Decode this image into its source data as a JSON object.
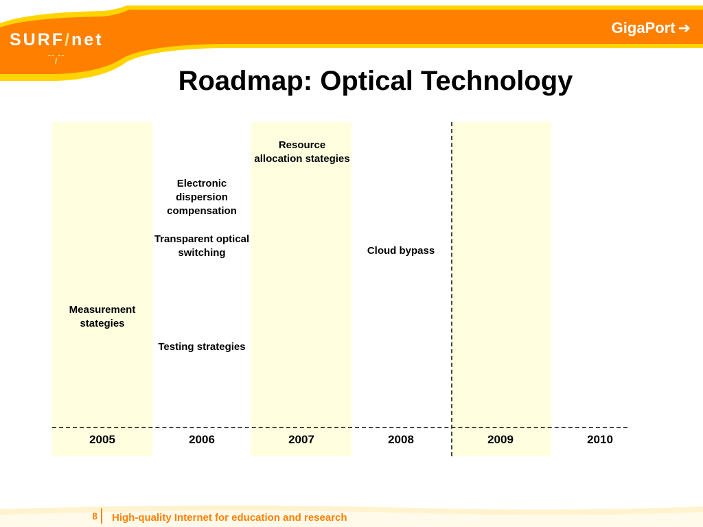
{
  "header": {
    "logo_letters": "SURF",
    "logo_slash": "/",
    "logo_suffix": "net",
    "logo_dashes": "-- --",
    "logo_mark": "/",
    "brand_link": "GigaPort",
    "brand_arrow": "➔"
  },
  "title": "Roadmap: Optical Technology",
  "timeline": {
    "years": [
      "2005",
      "2006",
      "2007",
      "2008",
      "2009",
      "2010"
    ],
    "items": [
      {
        "line1": "Resource",
        "line2": "allocation stategies"
      },
      {
        "line1": "Electronic",
        "line2": "dispersion",
        "line3": "compensation"
      },
      {
        "line1": "Transparent optical",
        "line2": "switching"
      },
      {
        "line1": "Cloud bypass"
      },
      {
        "line1": "Measurement",
        "line2": "stategies"
      },
      {
        "line1": "Testing strategies"
      }
    ]
  },
  "footer": {
    "page_number": "8",
    "tagline": "High-quality Internet for education and research"
  },
  "colors": {
    "accent_orange": "#ff8000",
    "accent_yellow": "#ffd400",
    "band_fill": "#ffffe0"
  }
}
